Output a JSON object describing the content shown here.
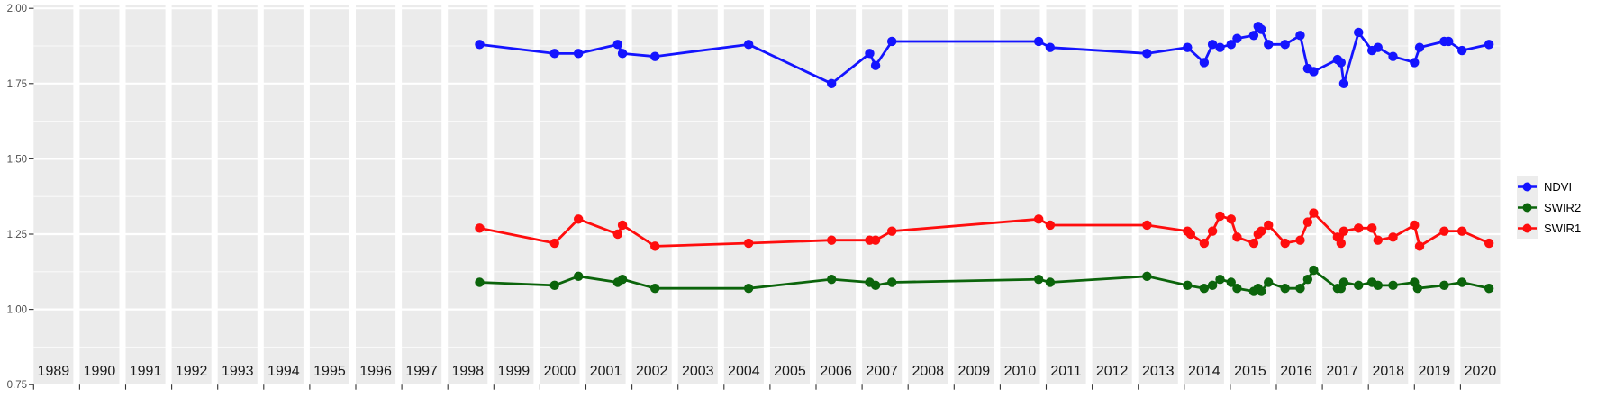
{
  "figure": {
    "background": "#FFFFFF",
    "panel_background": "#EBEBEB",
    "grid_color": "#FFFFFF",
    "axis_text_color": "#4D4D4D",
    "tick_color": "#333333",
    "strip_text_color": "#1A1A1A"
  },
  "y_axis": {
    "tick_labels": [
      "2.00",
      "1.75",
      "1.50",
      "1.25",
      "1.00",
      "0.75"
    ],
    "major_values": [
      2.0,
      1.75,
      1.5,
      1.25,
      1.0,
      0.75
    ],
    "minor_values": [
      1.875,
      1.625,
      1.375,
      1.125,
      0.875
    ]
  },
  "x_axis": {
    "years": [
      "1989",
      "1990",
      "1991",
      "1992",
      "1993",
      "1994",
      "1995",
      "1996",
      "1997",
      "1998",
      "1999",
      "2000",
      "2001",
      "2002",
      "2003",
      "2004",
      "2005",
      "2006",
      "2007",
      "2008",
      "2009",
      "2010",
      "2011",
      "2012",
      "2013",
      "2014",
      "2015",
      "2016",
      "2017",
      "2018",
      "2019",
      "2020"
    ]
  },
  "legend": {
    "items": [
      {
        "label": "NDVI",
        "color": "#1414FF"
      },
      {
        "label": "SWIR2",
        "color": "#0B640B"
      },
      {
        "label": "SWIR1",
        "color": "#FF0D0D"
      }
    ]
  },
  "chart_data": {
    "type": "line",
    "title": "",
    "xlabel": "",
    "ylabel": "",
    "x_unit": "decimal_year",
    "x_range": [
      1989,
      2021
    ],
    "ylim": [
      0.75,
      2.0
    ],
    "grid": "on",
    "legend_position": "right",
    "facets": "one panel per year, 1989-2020, white gaps between panels",
    "series": [
      {
        "name": "NDVI",
        "color": "#1414FF",
        "points": [
          [
            1998.8,
            1.88
          ],
          [
            2000.37,
            1.85
          ],
          [
            2000.97,
            1.85
          ],
          [
            2001.8,
            1.88
          ],
          [
            2001.92,
            1.85
          ],
          [
            2002.58,
            1.84
          ],
          [
            2004.62,
            1.88
          ],
          [
            2006.39,
            1.75
          ],
          [
            2007.19,
            1.85
          ],
          [
            2007.34,
            1.81
          ],
          [
            2007.75,
            1.89
          ],
          [
            2010.97,
            1.89
          ],
          [
            2011.1,
            1.87
          ],
          [
            2013.22,
            1.85
          ],
          [
            2014.08,
            1.87
          ],
          [
            2014.5,
            1.82
          ],
          [
            2014.71,
            1.88
          ],
          [
            2014.9,
            1.87
          ],
          [
            2015.02,
            1.88
          ],
          [
            2015.17,
            1.9
          ],
          [
            2015.59,
            1.91
          ],
          [
            2015.7,
            1.94
          ],
          [
            2015.78,
            1.93
          ],
          [
            2015.96,
            1.88
          ],
          [
            2016.22,
            1.88
          ],
          [
            2016.6,
            1.91
          ],
          [
            2016.79,
            1.8
          ],
          [
            2016.94,
            1.79
          ],
          [
            2017.38,
            1.83
          ],
          [
            2017.47,
            1.82
          ],
          [
            2017.54,
            1.75
          ],
          [
            2017.91,
            1.92
          ],
          [
            2018.09,
            1.86
          ],
          [
            2018.24,
            1.87
          ],
          [
            2018.62,
            1.84
          ],
          [
            2019.0,
            1.82
          ],
          [
            2019.13,
            1.87
          ],
          [
            2019.75,
            1.89
          ],
          [
            2019.86,
            1.89
          ],
          [
            2020.04,
            1.86
          ],
          [
            2020.72,
            1.88
          ]
        ]
      },
      {
        "name": "SWIR2",
        "color": "#0B640B",
        "points": [
          [
            1998.8,
            1.09
          ],
          [
            2000.37,
            1.08
          ],
          [
            2000.97,
            1.11
          ],
          [
            2001.8,
            1.09
          ],
          [
            2001.92,
            1.1
          ],
          [
            2002.58,
            1.07
          ],
          [
            2004.62,
            1.07
          ],
          [
            2006.39,
            1.1
          ],
          [
            2007.19,
            1.09
          ],
          [
            2007.34,
            1.08
          ],
          [
            2007.75,
            1.09
          ],
          [
            2010.97,
            1.1
          ],
          [
            2011.1,
            1.09
          ],
          [
            2013.22,
            1.11
          ],
          [
            2014.08,
            1.08
          ],
          [
            2014.5,
            1.07
          ],
          [
            2014.71,
            1.08
          ],
          [
            2014.9,
            1.1
          ],
          [
            2015.02,
            1.09
          ],
          [
            2015.17,
            1.07
          ],
          [
            2015.59,
            1.06
          ],
          [
            2015.7,
            1.07
          ],
          [
            2015.78,
            1.06
          ],
          [
            2015.96,
            1.09
          ],
          [
            2016.22,
            1.07
          ],
          [
            2016.6,
            1.07
          ],
          [
            2016.79,
            1.1
          ],
          [
            2016.94,
            1.13
          ],
          [
            2017.38,
            1.07
          ],
          [
            2017.47,
            1.07
          ],
          [
            2017.54,
            1.09
          ],
          [
            2017.91,
            1.08
          ],
          [
            2018.09,
            1.09
          ],
          [
            2018.24,
            1.08
          ],
          [
            2018.62,
            1.08
          ],
          [
            2019.0,
            1.09
          ],
          [
            2019.08,
            1.07
          ],
          [
            2019.75,
            1.08
          ],
          [
            2020.04,
            1.09
          ],
          [
            2020.72,
            1.07
          ]
        ]
      },
      {
        "name": "SWIR1",
        "color": "#FF0D0D",
        "points": [
          [
            1998.8,
            1.27
          ],
          [
            2000.37,
            1.22
          ],
          [
            2000.97,
            1.3
          ],
          [
            2001.8,
            1.25
          ],
          [
            2001.92,
            1.28
          ],
          [
            2002.58,
            1.21
          ],
          [
            2004.62,
            1.22
          ],
          [
            2006.39,
            1.23
          ],
          [
            2007.19,
            1.23
          ],
          [
            2007.34,
            1.23
          ],
          [
            2007.75,
            1.26
          ],
          [
            2010.97,
            1.3
          ],
          [
            2011.1,
            1.28
          ],
          [
            2013.22,
            1.28
          ],
          [
            2014.08,
            1.26
          ],
          [
            2014.16,
            1.25
          ],
          [
            2014.5,
            1.22
          ],
          [
            2014.71,
            1.26
          ],
          [
            2014.9,
            1.31
          ],
          [
            2015.02,
            1.3
          ],
          [
            2015.17,
            1.24
          ],
          [
            2015.59,
            1.22
          ],
          [
            2015.7,
            1.25
          ],
          [
            2015.78,
            1.26
          ],
          [
            2015.96,
            1.28
          ],
          [
            2016.22,
            1.22
          ],
          [
            2016.6,
            1.23
          ],
          [
            2016.79,
            1.29
          ],
          [
            2016.94,
            1.32
          ],
          [
            2017.38,
            1.24
          ],
          [
            2017.47,
            1.22
          ],
          [
            2017.54,
            1.26
          ],
          [
            2017.91,
            1.27
          ],
          [
            2018.09,
            1.27
          ],
          [
            2018.24,
            1.23
          ],
          [
            2018.62,
            1.24
          ],
          [
            2019.0,
            1.28
          ],
          [
            2019.13,
            1.21
          ],
          [
            2019.75,
            1.26
          ],
          [
            2020.04,
            1.26
          ],
          [
            2020.72,
            1.22
          ]
        ]
      }
    ]
  }
}
